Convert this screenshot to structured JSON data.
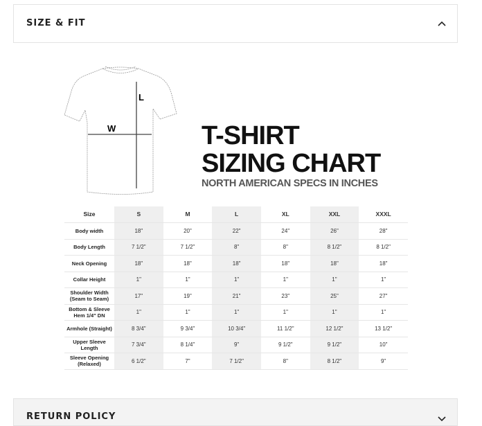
{
  "sections": {
    "size_fit": {
      "title": "SIZE & FIT",
      "icon": "chevron-up-icon"
    },
    "return_policy": {
      "title": "RETURN POLICY",
      "icon": "chevron-down-icon"
    }
  },
  "chart": {
    "diagram_labels": {
      "length": "L",
      "width": "W"
    },
    "title_line1": "T-SHIRT",
    "title_line2": "SIZING CHART",
    "subtitle": "NORTH AMERICAN SPECS IN INCHES"
  },
  "table": {
    "header": [
      "Size",
      "S",
      "M",
      "L",
      "XL",
      "XXL",
      "XXXL"
    ],
    "rows": [
      [
        "Body width",
        "18\"",
        "20\"",
        "22\"",
        "24\"",
        "26\"",
        "28\""
      ],
      [
        "Body Length",
        "7 1/2\"",
        "7 1/2\"",
        "8\"",
        "8\"",
        "8 1/2\"",
        "8 1/2\""
      ],
      [
        "Neck Opening",
        "18\"",
        "18\"",
        "18\"",
        "18\"",
        "18\"",
        "18\""
      ],
      [
        "Collar Height",
        "1\"",
        "1\"",
        "1\"",
        "1\"",
        "1\"",
        "1\""
      ],
      [
        "Shoulder Width (Seam to Seam)",
        "17\"",
        "19\"",
        "21\"",
        "23\"",
        "25\"",
        "27\""
      ],
      [
        "Bottom & Sleeve Hem 1/4\" DN",
        "1\"",
        "1\"",
        "1\"",
        "1\"",
        "1\"",
        "1\""
      ],
      [
        "Armhole (Straight)",
        "8 3/4\"",
        "9 3/4\"",
        "10 3/4\"",
        "11 1/2\"",
        "12 1/2\"",
        "13 1/2\""
      ],
      [
        "Upper Sleeve Length",
        "7 3/4\"",
        "8 1/4\"",
        "9\"",
        "9 1/2\"",
        "9 1/2\"",
        "10\""
      ],
      [
        "Sleeve Opening (Relaxed)",
        "6 1/2\"",
        "7\"",
        "7 1/2\"",
        "8\"",
        "8 1/2\"",
        "9\""
      ]
    ]
  }
}
